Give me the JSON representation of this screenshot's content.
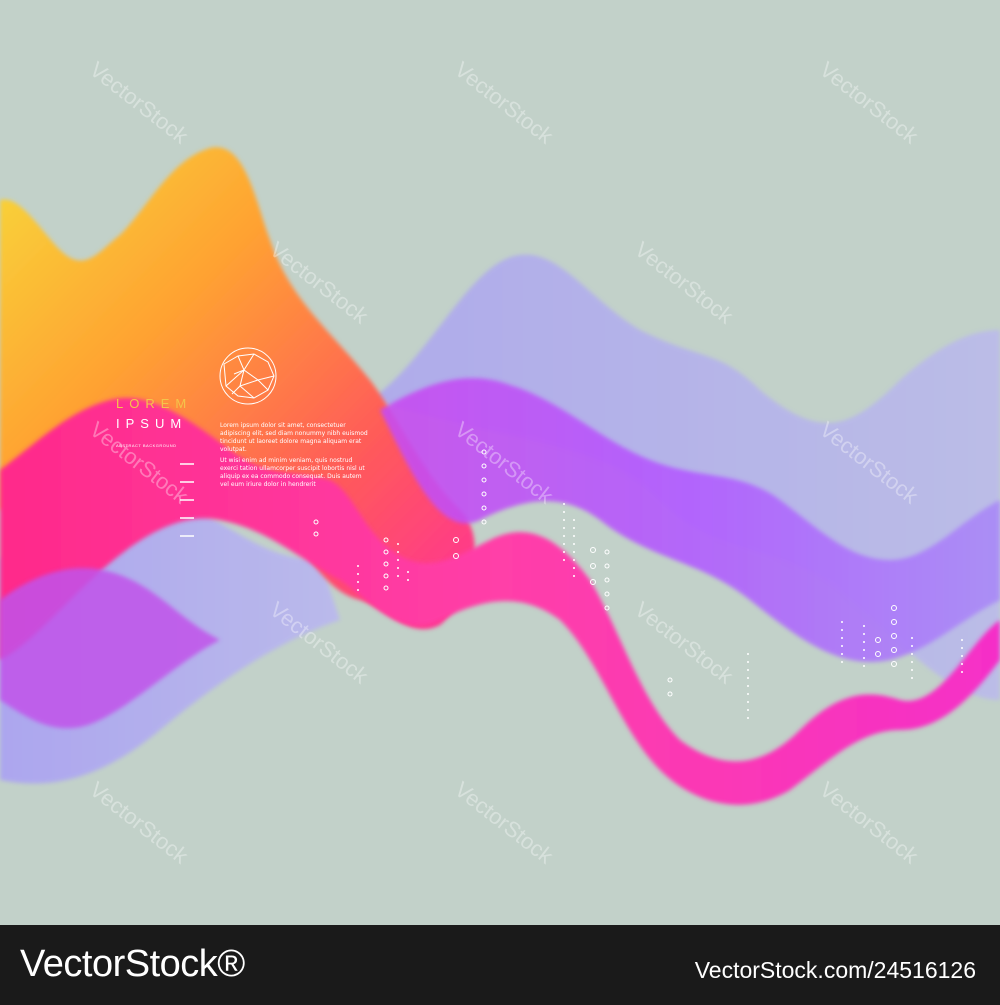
{
  "poster": {
    "title_line1": "LOREM",
    "title_line2": "IPSUM",
    "tagline": "ABSTRACT BACKGROUND",
    "paragraph1": "Lorem ipsum dolor sit amet, consectetuer adipiscing elit, sed diam nonummy nibh euismod tincidunt ut laoreet dolore magna aliquam erat volutpat.",
    "paragraph2": "Ut wisi enim ad minim veniam, quis nostrud exerci tation ullamcorper suscipit lobortis nisl ut aliquip ex ea commodo consequat. Duis autem vel eum iriure dolor in hendrerit"
  },
  "watermark": {
    "text": "VectorStock"
  },
  "footer": {
    "brand": "VectorStock®",
    "image_id": "VectorStock.com/24516126"
  },
  "colors": {
    "background": "#c2d1c9",
    "yellow": "#f6d23a",
    "orange": "#ff8a3d",
    "magenta": "#ff2fa0",
    "purple": "#b255ff",
    "lavender": "#9a9cf6",
    "footer": "#1a1a1a"
  }
}
